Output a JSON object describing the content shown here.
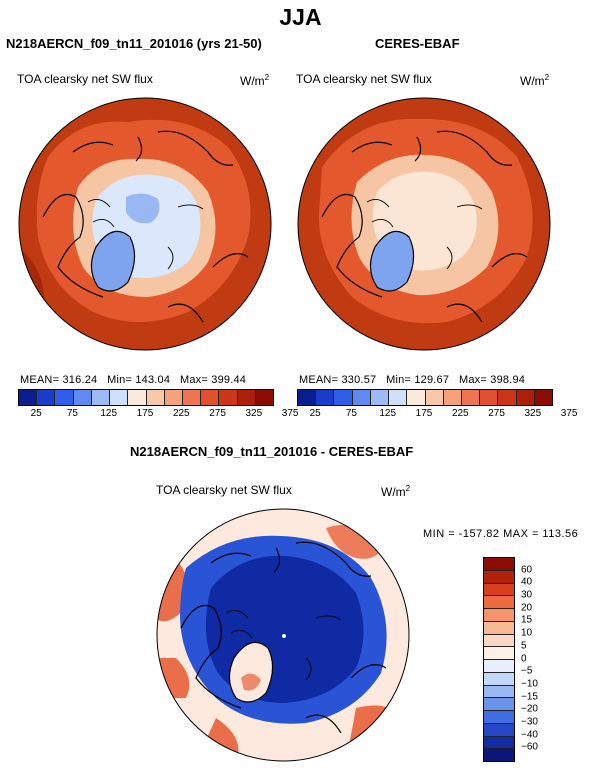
{
  "figure": {
    "title": "JJA"
  },
  "panels": [
    {
      "title": "N218AERCN_f09_tn11_201016 (yrs 21-50)",
      "variable": "TOA clearsky net SW flux",
      "units_base": "W/m",
      "units_exp": "2",
      "stats": {
        "mean_label": "MEAN=",
        "mean": "316.24",
        "min_label": "Min=",
        "min": "143.04",
        "max_label": "Max=",
        "max": "399.44"
      }
    },
    {
      "title": "CERES-EBAF",
      "variable": "TOA clearsky net SW flux",
      "units_base": "W/m",
      "units_exp": "2",
      "stats": {
        "mean_label": "MEAN=",
        "mean": "330.57",
        "min_label": "Min=",
        "min": "129.67",
        "max_label": "Max=",
        "max": "398.94"
      }
    },
    {
      "title": "N218AERCN_f09_tn11_201016 - CERES-EBAF",
      "variable": "TOA clearsky net SW flux",
      "units_base": "W/m",
      "units_exp": "2",
      "stats_line": "MIN = -157.82 MAX = 113.56"
    }
  ],
  "colorbar_abs": {
    "labels": [
      "25",
      "75",
      "125",
      "175",
      "225",
      "275",
      "325",
      "375"
    ],
    "colors": [
      "#0a1f8f",
      "#1a3dc9",
      "#2f5fe8",
      "#5f8bf0",
      "#9dbaf6",
      "#cfe0fb",
      "#fbe9dc",
      "#f9c8a8",
      "#f5a27a",
      "#ee7550",
      "#e2512f",
      "#cc3515",
      "#ac1f08",
      "#8a0c02"
    ]
  },
  "colorbar_diff": {
    "labels": [
      "60",
      "40",
      "30",
      "20",
      "15",
      "10",
      "5",
      "0",
      "−5",
      "−10",
      "−15",
      "−20",
      "−30",
      "−40",
      "−60"
    ],
    "colors": [
      "#8a0c02",
      "#b2220a",
      "#d8401d",
      "#ee6a3f",
      "#f4946a",
      "#f7b896",
      "#fad8c3",
      "#fdf0e6",
      "#e6f0fc",
      "#c3d7f7",
      "#9ab9f1",
      "#6a94ea",
      "#3f6de2",
      "#2547c8",
      "#142aa2",
      "#0a1778"
    ]
  },
  "map_colors": {
    "ocean_abs": "#c03a12",
    "ocean_abs_dark": "#a52908",
    "land_orange": "#e4582e",
    "pale": "#f6c6a4",
    "ice_light": "#dbe8fb",
    "greenland": "#7ea3ef",
    "ceres_center": "#fbe6d6",
    "diff_bg": "#fde9de",
    "diff_red": "#e8603a",
    "diff_blue_dark": "#0f2aa3",
    "diff_blue": "#2a54d6"
  }
}
